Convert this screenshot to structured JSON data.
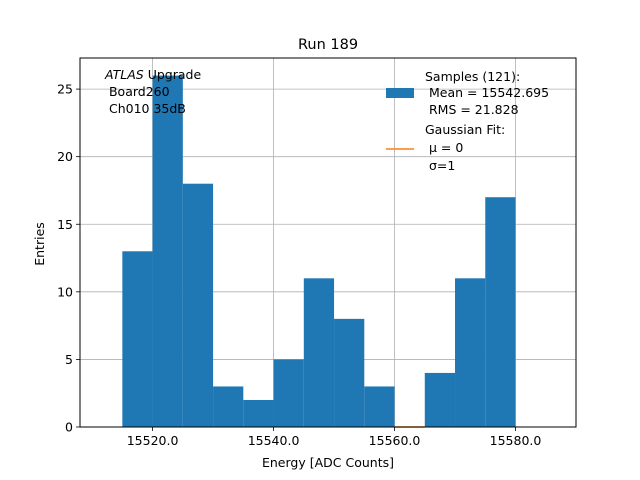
{
  "chart_data": {
    "type": "bar",
    "title": "Run 189",
    "xlabel": "Energy [ADC Counts]",
    "ylabel": "Entries",
    "bin_edges": [
      15515,
      15520,
      15525,
      15530,
      15535,
      15540,
      15545,
      15550,
      15555,
      15560,
      15565,
      15570,
      15575,
      15580
    ],
    "counts": [
      13,
      26,
      18,
      3,
      2,
      5,
      11,
      8,
      3,
      0,
      4,
      11,
      17
    ],
    "xlim": [
      15508,
      15590
    ],
    "ylim": [
      0,
      27.3
    ],
    "xticks": [
      15520.0,
      15540.0,
      15560.0,
      15580.0
    ],
    "xtick_labels": [
      "15520.0",
      "15540.0",
      "15560.0",
      "15580.0"
    ],
    "yticks": [
      0,
      5,
      10,
      15,
      20,
      25
    ],
    "ytick_labels": [
      "0",
      "5",
      "10",
      "15",
      "20",
      "25"
    ],
    "grid": true,
    "bar_color": "#1f77b4",
    "fit_color": "#ff7f0e",
    "fit_line": {
      "x": [
        15560,
        15565
      ],
      "y": [
        0,
        0
      ]
    },
    "annotation": {
      "italic": "ATLAS",
      "rest": " Upgrade",
      "line2": " Board260",
      "line3": " Ch010 35dB"
    },
    "legend": {
      "placement": "top-right",
      "samples_title": "Samples (121):",
      "samples_mean": " Mean = 15542.695",
      "samples_rms": " RMS = 21.828",
      "fit_title": "Gaussian Fit:",
      "fit_mu": " μ = 0",
      "fit_sigma": " σ=1"
    }
  }
}
